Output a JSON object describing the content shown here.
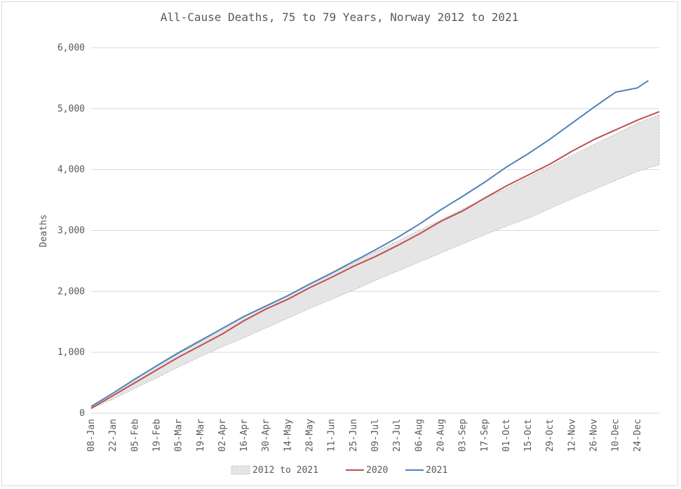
{
  "chart_data": {
    "type": "area",
    "title": "All-Cause Deaths, 75 to 79 Years, Norway 2012 to 2021",
    "ylabel": "Deaths",
    "xlabel": "",
    "ylim": [
      0,
      6000
    ],
    "yticks": [
      0,
      1000,
      2000,
      3000,
      4000,
      5000,
      6000
    ],
    "ytick_labels": [
      "0",
      "1,000",
      "2,000",
      "3,000",
      "4,000",
      "5,000",
      "6,000"
    ],
    "grid": true,
    "legend_position": "bottom",
    "x_tick_labels": [
      "08-Jan",
      "22-Jan",
      "05-Feb",
      "19-Feb",
      "05-Mar",
      "19-Mar",
      "02-Apr",
      "16-Apr",
      "30-Apr",
      "14-May",
      "28-May",
      "11-Jun",
      "25-Jun",
      "09-Jul",
      "23-Jul",
      "06-Aug",
      "20-Aug",
      "03-Sep",
      "17-Sep",
      "01-Oct",
      "15-Oct",
      "29-Oct",
      "12-Nov",
      "26-Nov",
      "10-Dec",
      "24-Dec"
    ],
    "x_weeks": [
      1,
      3,
      5,
      7,
      9,
      11,
      13,
      15,
      17,
      19,
      21,
      23,
      25,
      27,
      29,
      31,
      33,
      35,
      37,
      39,
      41,
      43,
      45,
      47,
      49,
      51
    ],
    "range_band": {
      "name": "2012 to 2021",
      "color": "#e5e5e5",
      "weeks": [
        1,
        3,
        5,
        7,
        9,
        11,
        13,
        15,
        17,
        19,
        21,
        23,
        25,
        27,
        29,
        31,
        33,
        35,
        37,
        39,
        41,
        43,
        45,
        47,
        49,
        51,
        53
      ],
      "lower": [
        80,
        230,
        410,
        580,
        760,
        930,
        1090,
        1240,
        1400,
        1560,
        1720,
        1870,
        2020,
        2180,
        2330,
        2480,
        2630,
        2780,
        2930,
        3070,
        3200,
        3360,
        3520,
        3670,
        3820,
        3970,
        4080
      ],
      "upper": [
        110,
        330,
        560,
        790,
        1010,
        1210,
        1390,
        1580,
        1760,
        1930,
        2110,
        2290,
        2470,
        2650,
        2820,
        3000,
        3170,
        3350,
        3520,
        3690,
        3870,
        4050,
        4230,
        4410,
        4580,
        4760,
        4900
      ]
    },
    "series": [
      {
        "name": "2020",
        "color": "#c0504d",
        "weeks": [
          1,
          3,
          5,
          7,
          9,
          11,
          13,
          15,
          17,
          19,
          21,
          23,
          25,
          27,
          29,
          31,
          33,
          35,
          37,
          39,
          41,
          43,
          45,
          47,
          49,
          51,
          53
        ],
        "values": [
          80,
          290,
          500,
          710,
          920,
          1110,
          1300,
          1520,
          1710,
          1870,
          2060,
          2230,
          2410,
          2570,
          2750,
          2940,
          3150,
          3320,
          3530,
          3730,
          3910,
          4090,
          4300,
          4490,
          4650,
          4810,
          4950
        ]
      },
      {
        "name": "2021",
        "color": "#4f81bd",
        "weeks": [
          1,
          3,
          5,
          7,
          9,
          11,
          13,
          15,
          17,
          19,
          21,
          23,
          25,
          27,
          29,
          31,
          33,
          35,
          37,
          39,
          41,
          43,
          45,
          47,
          49,
          51,
          52
        ],
        "values": [
          110,
          330,
          560,
          780,
          990,
          1190,
          1390,
          1590,
          1760,
          1930,
          2120,
          2300,
          2490,
          2680,
          2880,
          3100,
          3340,
          3560,
          3790,
          4040,
          4260,
          4500,
          4760,
          5020,
          5270,
          5340,
          5460
        ]
      }
    ]
  }
}
